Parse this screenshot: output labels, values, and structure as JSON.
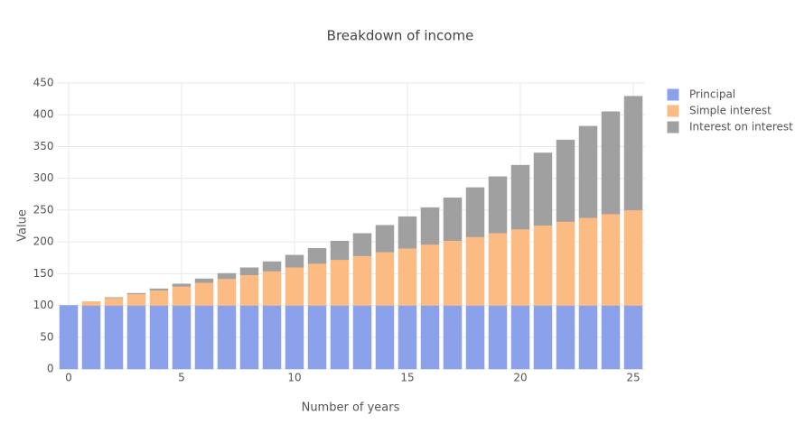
{
  "chart_data": {
    "type": "bar",
    "stacked": true,
    "title": "Breakdown of income",
    "x_label": "Number of years",
    "y_label": "Value",
    "x": [
      0,
      1,
      2,
      3,
      4,
      5,
      6,
      7,
      8,
      9,
      10,
      11,
      12,
      13,
      14,
      15,
      16,
      17,
      18,
      19,
      20,
      21,
      22,
      23,
      24,
      25
    ],
    "series": [
      {
        "name": "Principal",
        "color": "#8ba1ea",
        "values": [
          100,
          100,
          100,
          100,
          100,
          100,
          100,
          100,
          100,
          100,
          100,
          100,
          100,
          100,
          100,
          100,
          100,
          100,
          100,
          100,
          100,
          100,
          100,
          100,
          100,
          100
        ]
      },
      {
        "name": "Simple interest",
        "color": "#fbbb83",
        "values": [
          0,
          6,
          12,
          18,
          24,
          30,
          36,
          42,
          48,
          54,
          60,
          66,
          72,
          78,
          84,
          90,
          96,
          102,
          108,
          114,
          120,
          126,
          132,
          138,
          144,
          150
        ]
      },
      {
        "name": "Interest on interest",
        "color": "#a0a0a0",
        "values": [
          0,
          0,
          0.4,
          1.1,
          2.2,
          3.8,
          5.9,
          8.4,
          11.4,
          14.9,
          19.1,
          23.8,
          29.2,
          35.3,
          42.1,
          49.7,
          58.0,
          67.3,
          77.4,
          88.6,
          100.7,
          114.0,
          128.4,
          144.0,
          160.9,
          179.2
        ]
      }
    ],
    "xlim": [
      -0.5,
      25.5
    ],
    "xticks": [
      0,
      5,
      10,
      15,
      20,
      25
    ],
    "ylim": [
      0,
      450
    ],
    "yticks": [
      0,
      50,
      100,
      150,
      200,
      250,
      300,
      350,
      400,
      450
    ],
    "grid": true,
    "legend": "right"
  }
}
